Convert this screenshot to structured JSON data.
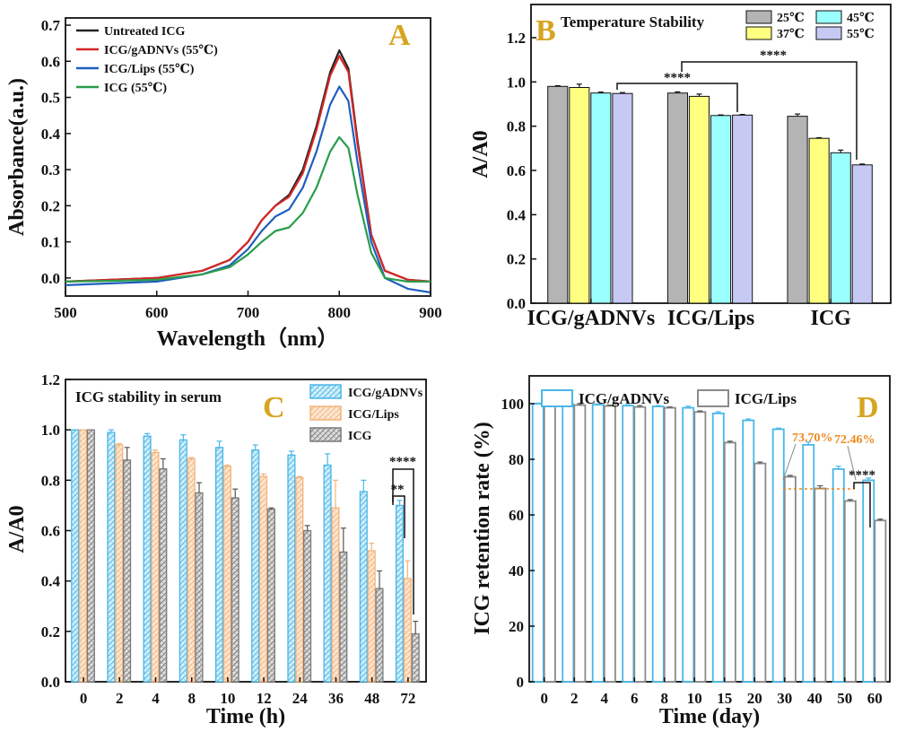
{
  "colors": {
    "ink": "#111111",
    "panel_letter": "#d6a520",
    "untreated": "#222222",
    "gadnvs_line": "#d62728",
    "lips_line": "#1f5fbf",
    "icg55_line": "#2a9d4b",
    "c25": "#b4b4b4",
    "c37": "#ffff80",
    "c45": "#99ffff",
    "c55": "#c7c9f5",
    "cyan": "#49b6e8",
    "peach": "#f8c79b",
    "gray": "#8a8a8a",
    "orange": "#ef8a1e"
  },
  "chart_data": [
    {
      "panel": "A",
      "type": "line",
      "title": "",
      "xlabel": "Wavelength（nm）",
      "ylabel": "Absorbance(a.u.)",
      "xlim": [
        500,
        900
      ],
      "ylim": [
        -0.05,
        0.72
      ],
      "xticks": [
        "500",
        "600",
        "700",
        "800",
        "900"
      ],
      "yticks": [
        "0.0",
        "0.1",
        "0.2",
        "0.3",
        "0.4",
        "0.5",
        "0.6",
        "0.7"
      ],
      "legend": "top-left",
      "x": [
        500,
        550,
        600,
        650,
        680,
        700,
        715,
        730,
        745,
        760,
        775,
        790,
        800,
        810,
        820,
        835,
        850,
        875,
        900
      ],
      "series": [
        {
          "name": "Untreated ICG",
          "color_key": "untreated",
          "values": [
            -0.01,
            -0.005,
            0.0,
            0.02,
            0.05,
            0.1,
            0.16,
            0.2,
            0.23,
            0.3,
            0.42,
            0.57,
            0.63,
            0.58,
            0.38,
            0.12,
            0.02,
            -0.005,
            -0.01
          ]
        },
        {
          "name": "ICG/gADNVs (55℃)",
          "color_key": "gadnvs_line",
          "values": [
            -0.01,
            -0.005,
            0.0,
            0.02,
            0.05,
            0.1,
            0.16,
            0.2,
            0.225,
            0.29,
            0.41,
            0.56,
            0.615,
            0.57,
            0.37,
            0.12,
            0.02,
            -0.005,
            -0.01
          ]
        },
        {
          "name": "ICG/Lips (55℃)",
          "color_key": "lips_line",
          "values": [
            -0.02,
            -0.015,
            -0.01,
            0.01,
            0.035,
            0.08,
            0.13,
            0.17,
            0.19,
            0.25,
            0.35,
            0.48,
            0.53,
            0.49,
            0.32,
            0.1,
            0.0,
            -0.03,
            -0.04
          ]
        },
        {
          "name": "ICG (55℃)",
          "color_key": "icg55_line",
          "values": [
            -0.01,
            -0.008,
            -0.005,
            0.01,
            0.03,
            0.065,
            0.1,
            0.13,
            0.14,
            0.18,
            0.25,
            0.35,
            0.39,
            0.36,
            0.23,
            0.07,
            0.0,
            -0.01,
            -0.01
          ]
        }
      ]
    },
    {
      "panel": "B",
      "type": "bar",
      "title": "Temperature Stability",
      "xlabel": "",
      "ylabel": "A/A0",
      "ylim": [
        0,
        1.35
      ],
      "yticks": [
        "0.0",
        "0.2",
        "0.4",
        "0.6",
        "0.8",
        "1.0",
        "1.2"
      ],
      "categories": [
        "ICG/gADNVs",
        "ICG/Lips",
        "ICG"
      ],
      "legend": "top-right",
      "series": [
        {
          "name": "25℃",
          "color_key": "c25",
          "values": [
            0.98,
            0.95,
            0.845
          ],
          "errors": [
            0.003,
            0.005,
            0.01
          ]
        },
        {
          "name": "37℃",
          "color_key": "c37",
          "values": [
            0.975,
            0.935,
            0.745
          ],
          "errors": [
            0.015,
            0.01,
            0.003
          ]
        },
        {
          "name": "45℃",
          "color_key": "c45",
          "values": [
            0.95,
            0.848,
            0.68
          ],
          "errors": [
            0.004,
            0.003,
            0.012
          ]
        },
        {
          "name": "55℃",
          "color_key": "c55",
          "values": [
            0.948,
            0.85,
            0.625
          ],
          "errors": [
            0.004,
            0.003,
            0.004
          ]
        }
      ],
      "significance": [
        "****",
        "****"
      ]
    },
    {
      "panel": "C",
      "type": "bar",
      "title": "ICG stability in serum",
      "xlabel": "Time (h)",
      "ylabel": "A/A0",
      "ylim": [
        0,
        1.2
      ],
      "yticks": [
        "0.0",
        "0.2",
        "0.4",
        "0.6",
        "0.8",
        "1.0",
        "1.2"
      ],
      "categories": [
        "0",
        "2",
        "4",
        "8",
        "10",
        "12",
        "24",
        "36",
        "48",
        "72"
      ],
      "legend": "top-right",
      "series": [
        {
          "name": "ICG/gADNVs",
          "color_key": "cyan",
          "values": [
            1.0,
            0.99,
            0.975,
            0.96,
            0.93,
            0.92,
            0.9,
            0.86,
            0.755,
            0.7
          ],
          "errors": [
            0.0,
            0.01,
            0.01,
            0.02,
            0.025,
            0.02,
            0.015,
            0.045,
            0.045,
            0.02
          ]
        },
        {
          "name": "ICG/Lips",
          "color_key": "peach",
          "values": [
            1.0,
            0.94,
            0.91,
            0.885,
            0.855,
            0.815,
            0.81,
            0.69,
            0.52,
            0.41
          ],
          "errors": [
            0.0,
            0.005,
            0.01,
            0.005,
            0.005,
            0.01,
            0.005,
            0.11,
            0.03,
            0.07
          ]
        },
        {
          "name": "ICG",
          "color_key": "gray",
          "values": [
            1.0,
            0.88,
            0.845,
            0.75,
            0.73,
            0.685,
            0.6,
            0.515,
            0.37,
            0.19
          ],
          "errors": [
            0.0,
            0.05,
            0.04,
            0.04,
            0.035,
            0.005,
            0.02,
            0.095,
            0.07,
            0.05
          ]
        }
      ],
      "significance": [
        "****",
        "**"
      ]
    },
    {
      "panel": "D",
      "type": "bar",
      "title": "",
      "xlabel": "Time (day)",
      "ylabel": "ICG retention rate (%)",
      "ylim": [
        0,
        110
      ],
      "yticks": [
        "0",
        "20",
        "40",
        "60",
        "80",
        "100"
      ],
      "categories": [
        "0",
        "2",
        "4",
        "6",
        "8",
        "10",
        "15",
        "20",
        "30",
        "40",
        "50",
        "60"
      ],
      "legend": "top",
      "series": [
        {
          "name": "ICG/gADNVs",
          "color_key": "cyan",
          "values": [
            100,
            99.8,
            99.6,
            99.3,
            99.0,
            98.5,
            96.5,
            94.0,
            90.8,
            85.2,
            76.5,
            72.46
          ],
          "errors": [
            0.2,
            0.3,
            0.3,
            0.3,
            0.3,
            0.6,
            0.6,
            0.5,
            0.4,
            1.0,
            1.0,
            0.8
          ]
        },
        {
          "name": "ICG/Lips",
          "color_key": "gray",
          "values": [
            100,
            99.5,
            99.2,
            98.8,
            98.5,
            97.0,
            86.0,
            78.5,
            73.7,
            69.5,
            65.0,
            58.0
          ],
          "errors": [
            0.2,
            0.5,
            0.3,
            0.5,
            0.3,
            0.4,
            0.5,
            0.5,
            0.5,
            1.0,
            0.5,
            0.5
          ]
        }
      ],
      "annotations": [
        "73.70%",
        "72.46%"
      ],
      "significance": [
        "****"
      ]
    }
  ]
}
